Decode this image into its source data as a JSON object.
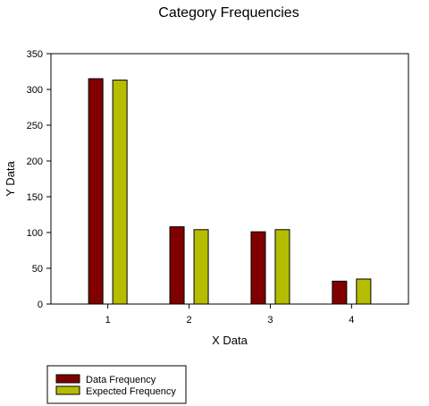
{
  "chart_data": {
    "type": "bar",
    "title": "Category Frequencies",
    "xlabel": "X Data",
    "ylabel": "Y Data",
    "categories": [
      "1",
      "2",
      "3",
      "4"
    ],
    "ylim": [
      0,
      350
    ],
    "yticks": [
      0,
      50,
      100,
      150,
      200,
      250,
      300,
      350
    ],
    "grid": false,
    "legend_position": "bottom-left",
    "series": [
      {
        "name": "Data Frequency",
        "color": "#800000",
        "values": [
          315,
          108,
          101,
          32
        ]
      },
      {
        "name": "Expected Frequency",
        "color": "#b5bd00",
        "values": [
          313,
          104,
          104,
          35
        ]
      }
    ]
  }
}
